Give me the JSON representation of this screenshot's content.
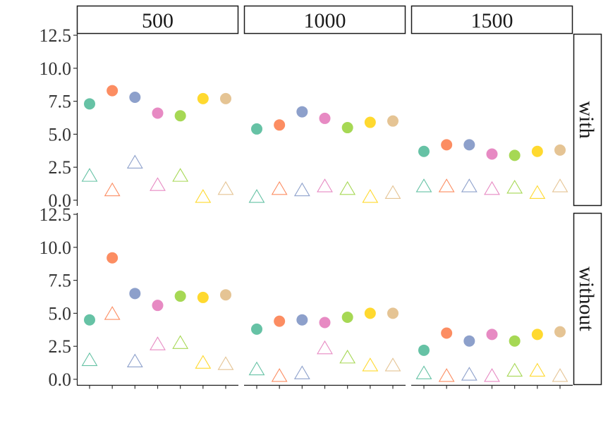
{
  "chart_data": {
    "type": "scatter",
    "facet_columns": [
      "500",
      "1000",
      "1500"
    ],
    "facet_rows": [
      "with",
      "without"
    ],
    "ylim": [
      0,
      12.5
    ],
    "y_ticks": [
      "0.0",
      "2.5",
      "5.0",
      "7.5",
      "10.0",
      "12.5"
    ],
    "x_categories": 7,
    "grid": false,
    "legend": "none",
    "colors": [
      "#66c2a5",
      "#fc8d62",
      "#8da0cb",
      "#e78ac3",
      "#a6d854",
      "#ffd92f",
      "#e5c494"
    ],
    "marker_shapes": {
      "filled": "circle",
      "open": "triangle"
    },
    "panels": [
      {
        "row": "with",
        "col": "500",
        "circles": [
          7.3,
          8.3,
          7.8,
          6.6,
          6.4,
          7.7,
          7.7
        ],
        "triangles": [
          1.8,
          0.7,
          2.8,
          1.1,
          1.8,
          0.2,
          0.8
        ]
      },
      {
        "row": "with",
        "col": "1000",
        "circles": [
          5.4,
          5.7,
          6.7,
          6.2,
          5.5,
          5.9,
          6.0
        ],
        "triangles": [
          0.2,
          0.8,
          0.7,
          1.0,
          0.8,
          0.2,
          0.5
        ]
      },
      {
        "row": "with",
        "col": "1500",
        "circles": [
          3.7,
          4.2,
          4.2,
          3.5,
          3.4,
          3.7,
          3.8
        ],
        "triangles": [
          1.0,
          1.0,
          1.0,
          0.8,
          0.9,
          0.5,
          1.0
        ]
      },
      {
        "row": "without",
        "col": "500",
        "circles": [
          4.5,
          9.2,
          6.5,
          5.6,
          6.3,
          6.2,
          6.4
        ],
        "triangles": [
          1.4,
          4.9,
          1.3,
          2.6,
          2.7,
          1.2,
          1.1
        ]
      },
      {
        "row": "without",
        "col": "1000",
        "circles": [
          3.8,
          4.4,
          4.5,
          4.3,
          4.7,
          5.0,
          5.0
        ],
        "triangles": [
          0.7,
          0.2,
          0.4,
          2.3,
          1.6,
          1.0,
          1.0
        ]
      },
      {
        "row": "without",
        "col": "1500",
        "circles": [
          2.2,
          3.5,
          2.9,
          3.4,
          2.9,
          3.4,
          3.6
        ],
        "triangles": [
          0.4,
          0.2,
          0.3,
          0.2,
          0.6,
          0.6,
          0.2
        ]
      }
    ]
  }
}
